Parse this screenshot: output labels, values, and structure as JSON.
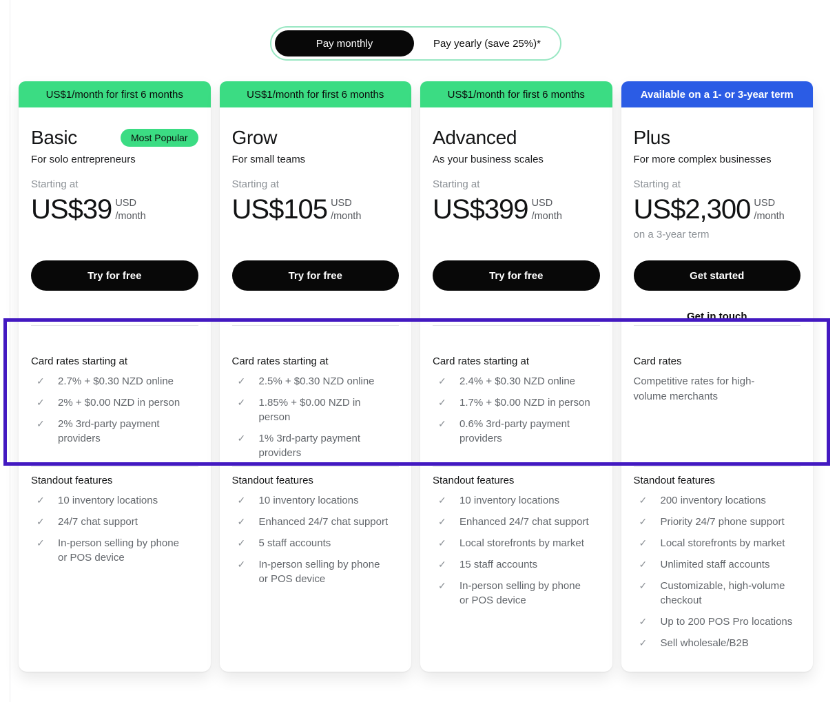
{
  "toggle": {
    "monthly_label": "Pay monthly",
    "yearly_label": "Pay yearly (save 25%)*"
  },
  "icons": {
    "check": "✓"
  },
  "colors": {
    "banner_green": "#3bdc83",
    "banner_blue": "#2b5ce5",
    "button_black": "#080808",
    "highlight_purple": "#4319c1"
  },
  "plans": [
    {
      "banner": "US$1/month for first 6 months",
      "name": "Basic",
      "badge": "Most Popular",
      "tagline": "For solo entrepreneurs",
      "starting_label": "Starting at",
      "price": "US$39",
      "currency": "USD",
      "per": "/month",
      "cta": "Try for free",
      "card_rates_title": "Card rates starting at",
      "card_rates": [
        "2.7% + $0.30 NZD online",
        "2% + $0.00 NZD in person",
        "2% 3rd-party payment\nproviders"
      ],
      "features_title": "Standout features",
      "features": [
        "10 inventory locations",
        "24/7 chat support",
        "In-person selling by phone\nor POS device"
      ]
    },
    {
      "banner": "US$1/month for first 6 months",
      "name": "Grow",
      "tagline": "For small teams",
      "starting_label": "Starting at",
      "price": "US$105",
      "currency": "USD",
      "per": "/month",
      "cta": "Try for free",
      "card_rates_title": "Card rates starting at",
      "card_rates": [
        "2.5% + $0.30 NZD online",
        "1.85% + $0.00 NZD in\nperson",
        "1% 3rd-party payment\nproviders"
      ],
      "features_title": "Standout features",
      "features": [
        "10 inventory locations",
        "Enhanced 24/7 chat support",
        "5 staff accounts",
        "In-person selling by phone\nor POS device"
      ]
    },
    {
      "banner": "US$1/month for first 6 months",
      "name": "Advanced",
      "tagline": "As your business scales",
      "starting_label": "Starting at",
      "price": "US$399",
      "currency": "USD",
      "per": "/month",
      "cta": "Try for free",
      "card_rates_title": "Card rates starting at",
      "card_rates": [
        "2.4% + $0.30 NZD online",
        "1.7% + $0.00 NZD in person",
        "0.6% 3rd-party payment\nproviders"
      ],
      "features_title": "Standout features",
      "features": [
        "10 inventory locations",
        "Enhanced 24/7 chat support",
        "Local storefronts by market",
        "15 staff accounts",
        "In-person selling by phone\nor POS device"
      ]
    },
    {
      "banner": "Available on a 1- or 3-year term",
      "name": "Plus",
      "tagline": "For more complex businesses",
      "starting_label": "Starting at",
      "price": "US$2,300",
      "currency": "USD",
      "per": "/month",
      "term_note": "on a 3-year term",
      "cta": "Get started",
      "secondary_cta": "Get in touch",
      "card_rates_title": "Card rates",
      "card_rates_note": "Competitive rates for high-\nvolume merchants",
      "features_title": "Standout features",
      "features": [
        "200 inventory locations",
        "Priority 24/7 phone support",
        "Local storefronts by market",
        "Unlimited staff accounts",
        "Customizable, high-volume\ncheckout",
        "Up to 200 POS Pro locations",
        "Sell wholesale/B2B"
      ]
    }
  ]
}
